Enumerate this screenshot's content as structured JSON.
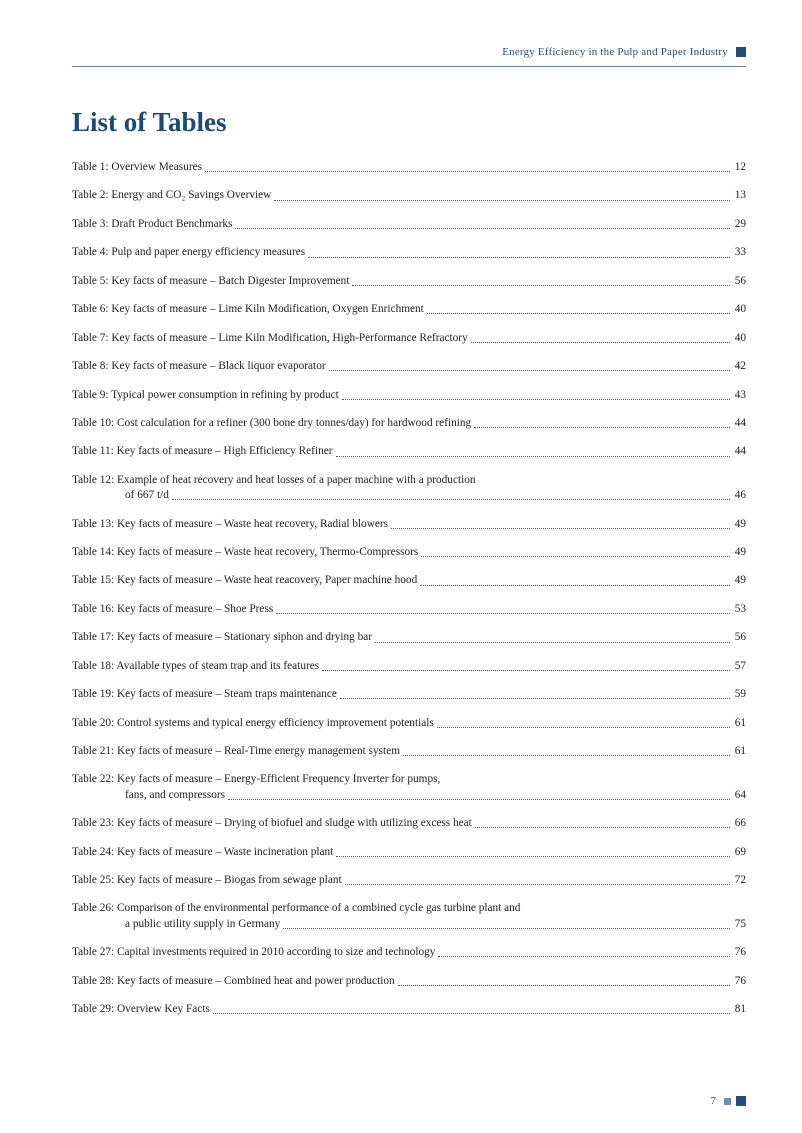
{
  "header": {
    "title": "Energy Efficiency in the Pulp and Paper Industry",
    "accent_color": "#1f4e79"
  },
  "section": {
    "title": "List of Tables",
    "title_color": "#1a4a7a",
    "title_fontsize": 27
  },
  "toc": {
    "entries": [
      {
        "label": "Table 1: Overview Measures",
        "page": "12"
      },
      {
        "label": "Table 2: Energy and CO₂ Savings Overview",
        "page": "13"
      },
      {
        "label": "Table 3: Draft Product Benchmarks",
        "page": "29"
      },
      {
        "label": "Table 4: Pulp and paper energy efficiency measures",
        "page": "33"
      },
      {
        "label": "Table 5: Key facts of measure – Batch Digester Improvement",
        "page": "56"
      },
      {
        "label": "Table 6: Key facts of measure – Lime Kiln Modification, Oxygen Enrichment",
        "page": "40"
      },
      {
        "label": "Table 7: Key facts of measure – Lime Kiln Modification, High-Performance Refractory",
        "page": "40"
      },
      {
        "label": "Table 8: Key facts of measure – Black liquor evaporator",
        "page": "42"
      },
      {
        "label": "Table 9: Typical power consumption in refining by product",
        "page": "43"
      },
      {
        "label": "Table 10: Cost calculation for a refiner (300 bone dry tonnes/day) for hardwood refining",
        "page": "44"
      },
      {
        "label": "Table 11: Key facts of measure – High Efficiency Refiner",
        "page": "44"
      },
      {
        "label": "Table 12: Example of heat recovery and heat losses of a paper machine with a production",
        "sub": "of 667 t/d",
        "page": "46"
      },
      {
        "label": "Table 13: Key facts of measure – Waste heat recovery, Radial blowers",
        "page": "49"
      },
      {
        "label": "Table 14: Key facts of measure – Waste heat recovery, Thermo-Compressors",
        "page": "49"
      },
      {
        "label": "Table 15: Key facts of measure – Waste heat reacovery, Paper machine hood",
        "page": "49"
      },
      {
        "label": "Table 16: Key facts of measure – Shoe Press",
        "page": "53"
      },
      {
        "label": "Table 17: Key facts of measure – Stationary siphon and drying bar",
        "page": "56"
      },
      {
        "label": "Table 18: Available types of steam trap and its features",
        "page": "57"
      },
      {
        "label": "Table 19: Key facts of measure – Steam traps maintenance",
        "page": "59"
      },
      {
        "label": "Table 20: Control systems and typical energy efficiency improvement potentials",
        "page": "61"
      },
      {
        "label": "Table 21: Key facts of measure – Real-Time energy management system",
        "page": "61"
      },
      {
        "label": "Table 22: Key facts of measure – Energy-Efficient Frequency Inverter for pumps,",
        "sub": "fans, and compressors",
        "page": "64"
      },
      {
        "label": "Table 23: Key facts of measure – Drying of biofuel and sludge with utilizing excess heat",
        "page": "66"
      },
      {
        "label": "Table 24: Key facts of measure – Waste incineration plant",
        "page": "69"
      },
      {
        "label": "Table 25: Key facts of measure – Biogas from sewage plant",
        "page": "72"
      },
      {
        "label": "Table 26: Comparison of the environmental performance of a combined cycle gas turbine plant and",
        "sub": "a public utility supply in Germany",
        "page": "75"
      },
      {
        "label": "Table 27: Capital investments required in 2010 according to size and technology",
        "page": "76"
      },
      {
        "label": "Table 28: Key facts of measure – Combined heat and power production",
        "page": "76"
      },
      {
        "label": "Table 29: Overview Key Facts",
        "page": "81"
      }
    ]
  },
  "footer": {
    "page_number": "7",
    "sq_small_color": "#6b8db3",
    "sq_large_color": "#1f4e79"
  }
}
